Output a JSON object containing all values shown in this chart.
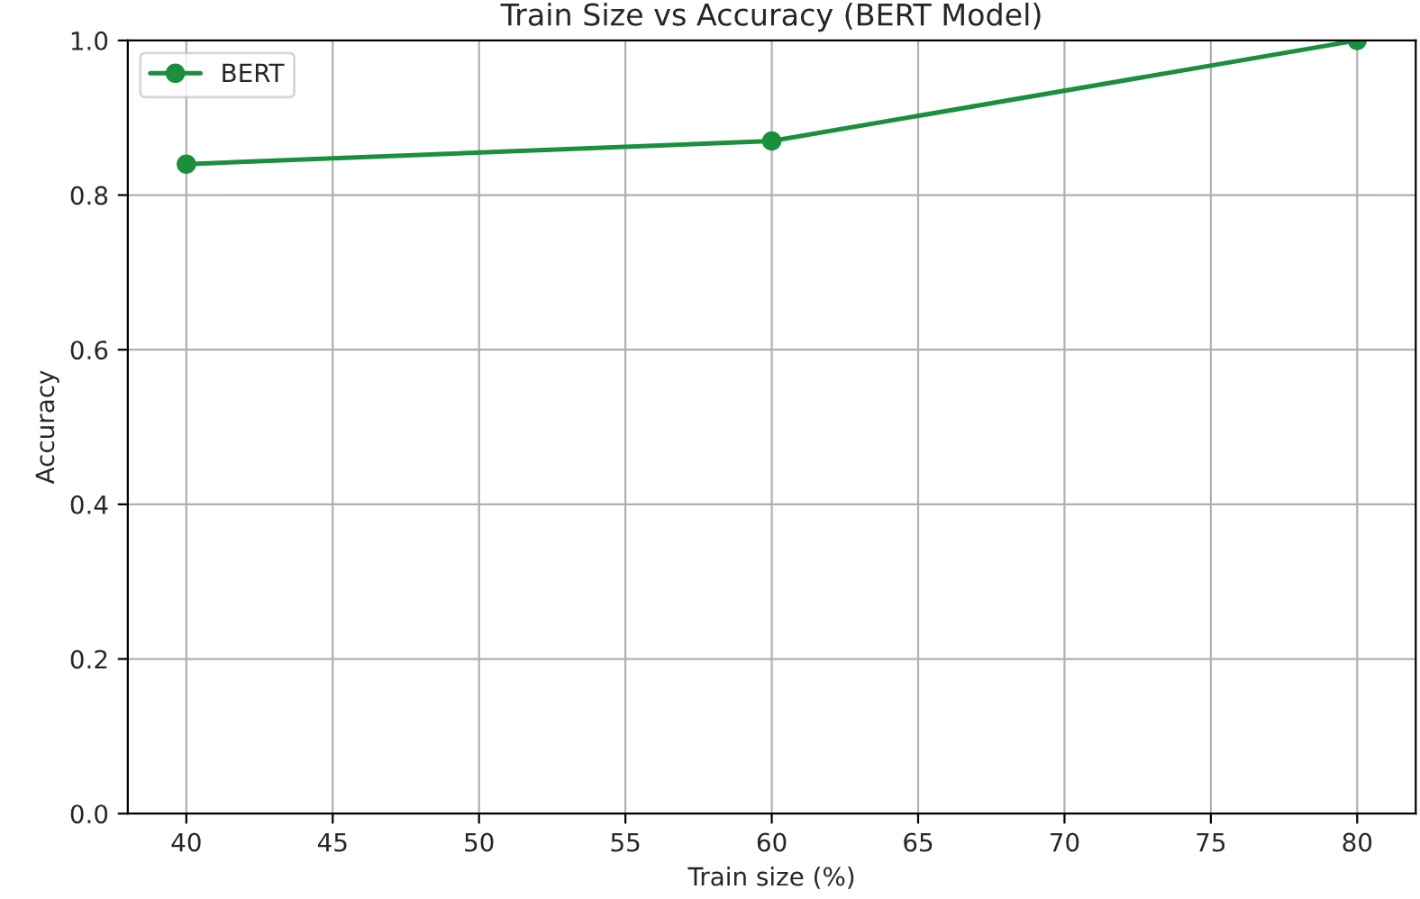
{
  "chart_data": {
    "type": "line",
    "title": "Train Size vs Accuracy (BERT Model)",
    "xlabel": "Train size (%)",
    "ylabel": "Accuracy",
    "x": [
      40,
      60,
      80
    ],
    "series": [
      {
        "name": "BERT",
        "color": "#1a8f3c",
        "values": [
          0.84,
          0.87,
          1.0
        ]
      }
    ],
    "xlim": [
      38,
      82
    ],
    "xticks": [
      40,
      45,
      50,
      55,
      60,
      65,
      70,
      75,
      80
    ],
    "ylim": [
      0,
      1.0
    ],
    "yticks": [
      {
        "value": 0,
        "label": "0.0"
      },
      0.2,
      0.4,
      0.6,
      0.8,
      {
        "value": 1.0,
        "label": "1.0"
      }
    ],
    "grid": true,
    "legend": "top left",
    "marker": "circle",
    "line_style": "solid"
  }
}
